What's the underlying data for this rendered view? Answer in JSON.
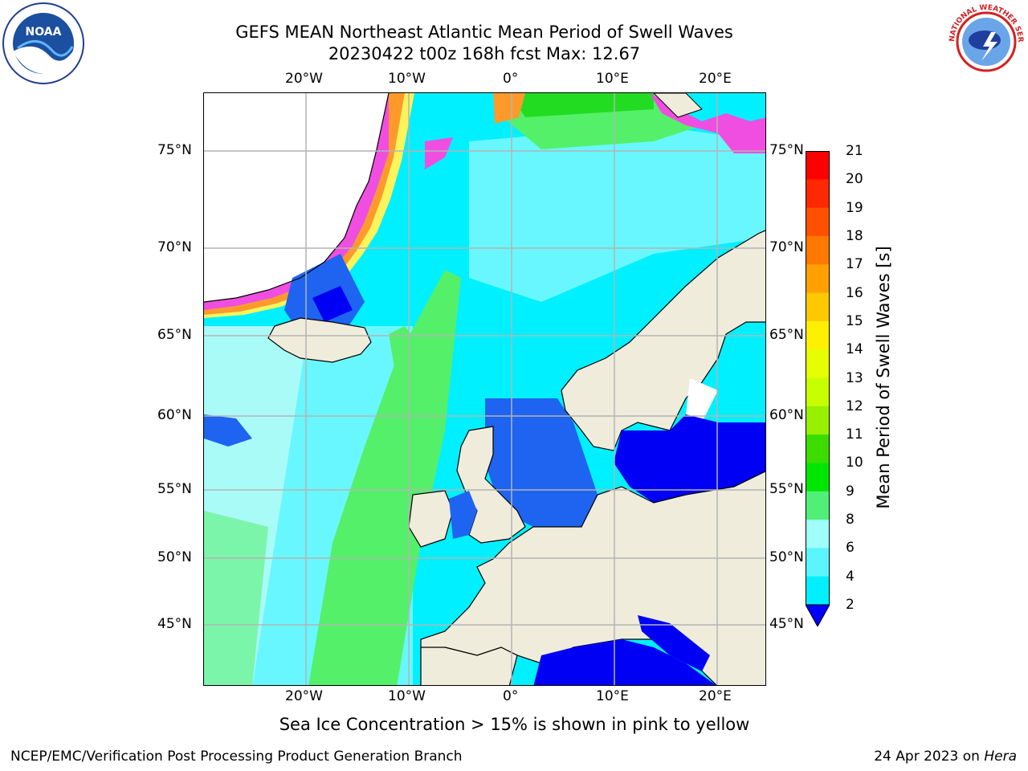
{
  "title": {
    "line1": "GEFS MEAN Northeast Atlantic Mean Period of Swell Waves",
    "line2": "20230422 t00z 168h fcst   Max: 12.67"
  },
  "logos": {
    "left": "noaa-logo",
    "right": "national-weather-service-logo",
    "left_text": "NOAA",
    "right_text": "NATIONAL WEATHER SERVICE"
  },
  "map": {
    "lon_labels": [
      "20°W",
      "10°W",
      "0°",
      "10°E",
      "20°E"
    ],
    "lat_labels": [
      "75°N",
      "70°N",
      "65°N",
      "60°N",
      "55°N",
      "50°N",
      "45°N"
    ],
    "colors": {
      "land": "#efecdc",
      "ocean_low": "#0000f5",
      "ocean_blue": "#1e64f0",
      "ocean_cyan": "#00f0ff",
      "ocean_lightcyan": "#69f7ff",
      "ocean_pale": "#a9fbf8",
      "ocean_green": "#55f069",
      "ocean_brightgreen": "#22dc22",
      "ice_pink": "#f04ee1",
      "ice_orange": "#ff9a2a",
      "ice_yellow": "#fff35a",
      "grid": "#b4b4b4",
      "coast": "#000000"
    }
  },
  "colorbar": {
    "label": "Mean Period of Swell Waves [s]",
    "ticks": [
      "21",
      "20",
      "19",
      "18",
      "17",
      "16",
      "15",
      "14",
      "13",
      "12",
      "11",
      "10",
      "9",
      "8",
      "6",
      "4",
      "2"
    ],
    "colors": [
      "#ff0000",
      "#ff2800",
      "#ff5000",
      "#ff7800",
      "#ffa000",
      "#ffc800",
      "#fff000",
      "#e6ff00",
      "#c8ff00",
      "#96f000",
      "#3cdc00",
      "#00e600",
      "#50f078",
      "#a0fff8",
      "#5af5ff",
      "#00f0ff",
      "#0082ff"
    ],
    "under_color": "#0000ff"
  },
  "footnote": "Sea Ice Concentration > 15% is shown in pink to yellow",
  "credit": "NCEP/EMC/Verification Post Processing Product Generation Branch",
  "date_prefix": "24 Apr 2023 on ",
  "date_machine": "Hera"
}
